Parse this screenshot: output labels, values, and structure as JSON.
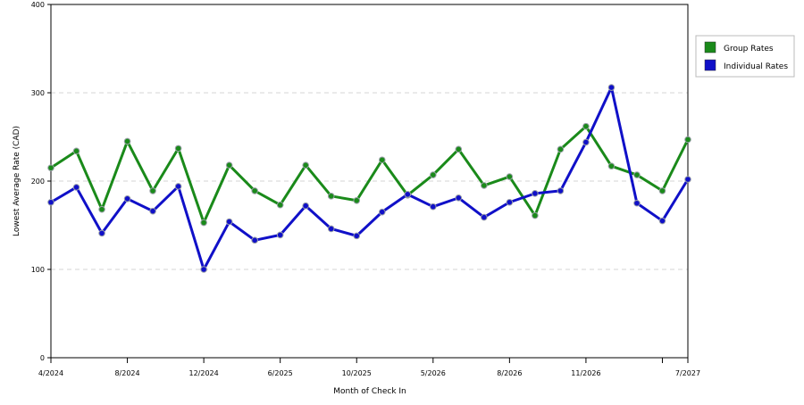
{
  "chart_data": {
    "type": "line",
    "xlabel": "Month of Check In",
    "ylabel": "Lowest Average Rate (CAD)",
    "ylim": [
      0,
      400
    ],
    "y_ticks": [
      0,
      100,
      200,
      300,
      400
    ],
    "x_tick_labels": [
      {
        "index": 0,
        "label": "4/2024"
      },
      {
        "index": 3,
        "label": "8/2024"
      },
      {
        "index": 6,
        "label": "12/2024"
      },
      {
        "index": 9,
        "label": "6/2025"
      },
      {
        "index": 12,
        "label": "10/2025"
      },
      {
        "index": 15,
        "label": "5/2026"
      },
      {
        "index": 18,
        "label": "8/2026"
      },
      {
        "index": 21,
        "label": "11/2026"
      },
      {
        "index": 24,
        "label": ""
      },
      {
        "index": 25,
        "label": "7/2027"
      }
    ],
    "grid": "horizontal dashed",
    "legend_position": "right",
    "series": [
      {
        "name": "Group Rates",
        "color": "#1a8a1a",
        "values": [
          215,
          234,
          168,
          245,
          189,
          237,
          153,
          218,
          189,
          173,
          218,
          183,
          178,
          224,
          184,
          207,
          236,
          195,
          205,
          161,
          236,
          262,
          217,
          207,
          189,
          247
        ]
      },
      {
        "name": "Individual Rates",
        "color": "#1010c8",
        "values": [
          176,
          193,
          141,
          180,
          166,
          194,
          100,
          154,
          133,
          139,
          172,
          146,
          138,
          165,
          185,
          171,
          181,
          159,
          176,
          186,
          189,
          244,
          306,
          175,
          155,
          202
        ]
      }
    ]
  }
}
